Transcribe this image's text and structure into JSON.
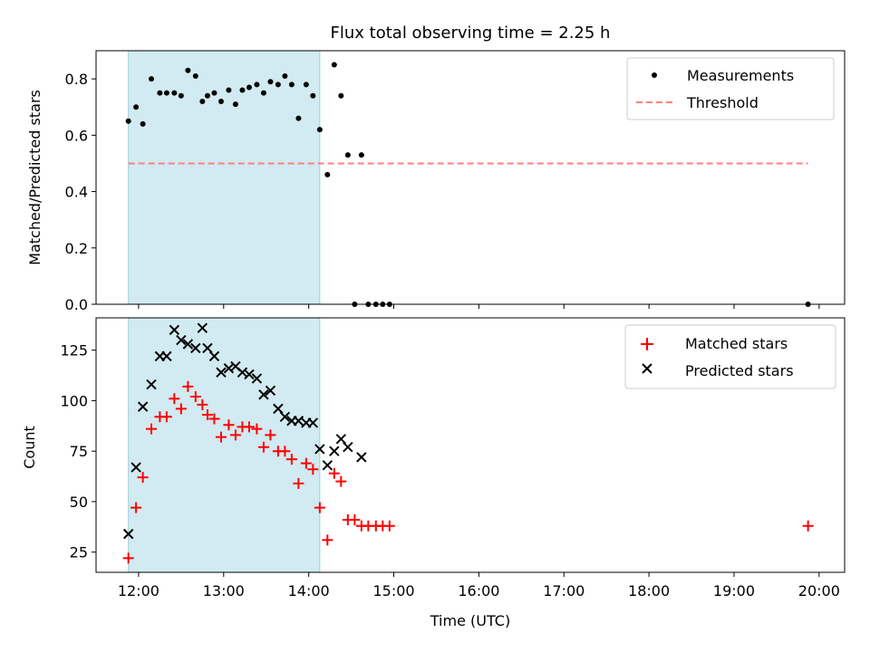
{
  "colors": {
    "shade": "#add8e6",
    "threshold": "#ff7f7f",
    "measurement": "#000000",
    "matched": "#ff0000",
    "predicted": "#000000"
  },
  "chart_data": [
    {
      "type": "scatter",
      "title": "Flux total observing time = 2.25 h",
      "xlabel": "",
      "ylabel": "Matched/Predicted stars",
      "xlim": [
        11.5,
        20.3
      ],
      "ylim": [
        0,
        0.9
      ],
      "yticks": [
        0.0,
        0.2,
        0.4,
        0.6,
        0.8
      ],
      "yticklabels": [
        "0.0",
        "0.2",
        "0.4",
        "0.6",
        "0.8"
      ],
      "legend_position": "top-right",
      "shaded_span": [
        11.88,
        14.13
      ],
      "series": [
        {
          "name": "Measurements",
          "marker": "dot",
          "x": [
            11.88,
            11.97,
            12.05,
            12.15,
            12.25,
            12.33,
            12.42,
            12.5,
            12.58,
            12.67,
            12.75,
            12.81,
            12.89,
            12.97,
            13.06,
            13.14,
            13.22,
            13.3,
            13.39,
            13.47,
            13.55,
            13.64,
            13.72,
            13.8,
            13.88,
            13.97,
            14.05,
            14.13,
            14.22,
            14.3,
            14.38,
            14.46,
            14.54,
            14.62,
            14.7,
            14.79,
            14.87,
            14.95,
            19.87
          ],
          "y": [
            0.65,
            0.7,
            0.64,
            0.8,
            0.75,
            0.75,
            0.75,
            0.74,
            0.83,
            0.81,
            0.72,
            0.74,
            0.75,
            0.72,
            0.76,
            0.71,
            0.76,
            0.77,
            0.78,
            0.75,
            0.79,
            0.78,
            0.81,
            0.78,
            0.66,
            0.78,
            0.74,
            0.62,
            0.46,
            0.85,
            0.74,
            0.53,
            0.0,
            0.53,
            0.0,
            0.0,
            0.0,
            0.0,
            0.0
          ]
        },
        {
          "name": "Threshold",
          "marker": "dashed-line",
          "x": [
            11.88,
            19.87
          ],
          "y": [
            0.5,
            0.5
          ]
        }
      ]
    },
    {
      "type": "scatter",
      "title": "",
      "xlabel": "Time (UTC)",
      "ylabel": "Count",
      "xlim": [
        11.5,
        20.3
      ],
      "ylim": [
        15,
        141
      ],
      "xticks": [
        12,
        13,
        14,
        15,
        16,
        17,
        18,
        19,
        20
      ],
      "xticklabels": [
        "12:00",
        "13:00",
        "14:00",
        "15:00",
        "16:00",
        "17:00",
        "18:00",
        "19:00",
        "20:00"
      ],
      "yticks": [
        25,
        50,
        75,
        100,
        125
      ],
      "yticklabels": [
        "25",
        "50",
        "75",
        "100",
        "125"
      ],
      "legend_position": "top-right",
      "shaded_span": [
        11.88,
        14.13
      ],
      "series": [
        {
          "name": "Matched stars",
          "marker": "plus",
          "x": [
            11.88,
            11.97,
            12.05,
            12.15,
            12.25,
            12.33,
            12.42,
            12.5,
            12.58,
            12.67,
            12.75,
            12.81,
            12.89,
            12.97,
            13.06,
            13.14,
            13.22,
            13.3,
            13.39,
            13.47,
            13.55,
            13.64,
            13.72,
            13.8,
            13.88,
            13.97,
            14.05,
            14.13,
            14.22,
            14.3,
            14.38,
            14.46,
            14.54,
            14.62,
            14.7,
            14.79,
            14.87,
            14.95,
            19.87
          ],
          "y": [
            22,
            47,
            62,
            86,
            92,
            92,
            101,
            96,
            107,
            102,
            98,
            93,
            91,
            82,
            88,
            83,
            87,
            87,
            86,
            77,
            83,
            75,
            75,
            71,
            59,
            69,
            66,
            47,
            31,
            64,
            60,
            41,
            41,
            38,
            38,
            38,
            38,
            38,
            38
          ]
        },
        {
          "name": "Predicted stars",
          "marker": "x",
          "x": [
            11.88,
            11.97,
            12.05,
            12.15,
            12.25,
            12.33,
            12.42,
            12.5,
            12.58,
            12.67,
            12.75,
            12.81,
            12.89,
            12.97,
            13.06,
            13.14,
            13.22,
            13.3,
            13.39,
            13.47,
            13.55,
            13.64,
            13.72,
            13.8,
            13.88,
            13.97,
            14.05,
            14.13,
            14.22,
            14.3,
            14.38,
            14.46,
            14.62
          ],
          "y": [
            34,
            67,
            97,
            108,
            122,
            122,
            135,
            130,
            128,
            126,
            136,
            126,
            122,
            114,
            116,
            117,
            114,
            113,
            111,
            103,
            105,
            96,
            92,
            90,
            90,
            89,
            89,
            76,
            68,
            75,
            81,
            77,
            72
          ]
        }
      ]
    }
  ]
}
